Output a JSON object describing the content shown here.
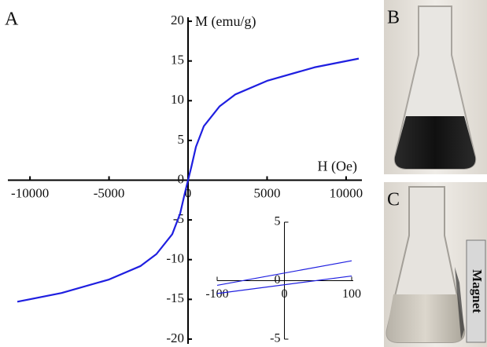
{
  "chart_data": [
    {
      "type": "line",
      "x_label": "H (Oe)",
      "y_label": "M (emu/g)",
      "xlim": [
        -11400,
        10900
      ],
      "ylim": [
        -20.6,
        20.5
      ],
      "xticks": [
        -10000,
        -5000,
        0,
        5000,
        10000
      ],
      "yticks": [
        -20,
        -15,
        -10,
        -5,
        0,
        5,
        10,
        15,
        20
      ],
      "x": [
        -10800,
        -8000,
        -5000,
        -3000,
        -2000,
        -1000,
        -500,
        -200,
        0,
        200,
        500,
        1000,
        2000,
        3000,
        5000,
        8000,
        10800
      ],
      "series": [
        {
          "color": "#1f1fe0",
          "values": [
            -15.3,
            -14.2,
            -12.5,
            -10.8,
            -9.3,
            -6.8,
            -4.2,
            -1.6,
            0,
            1.6,
            4.2,
            6.8,
            9.3,
            10.8,
            12.5,
            14.2,
            15.3
          ]
        }
      ]
    },
    {
      "type": "line",
      "xlim": [
        -100,
        100
      ],
      "ylim": [
        -5,
        5
      ],
      "xticks": [
        -100,
        0,
        100
      ],
      "yticks": [
        -5,
        0,
        5
      ],
      "x": [
        -100,
        100
      ],
      "series": [
        {
          "color": "#1f1fe0",
          "values": [
            -0.4,
            1.7
          ]
        },
        {
          "color": "#1f1fe0",
          "values": [
            -1.1,
            0.4
          ]
        }
      ]
    }
  ],
  "panels": {
    "a": "A",
    "b": "B",
    "c": "C"
  },
  "magnet_label": "Magnet"
}
